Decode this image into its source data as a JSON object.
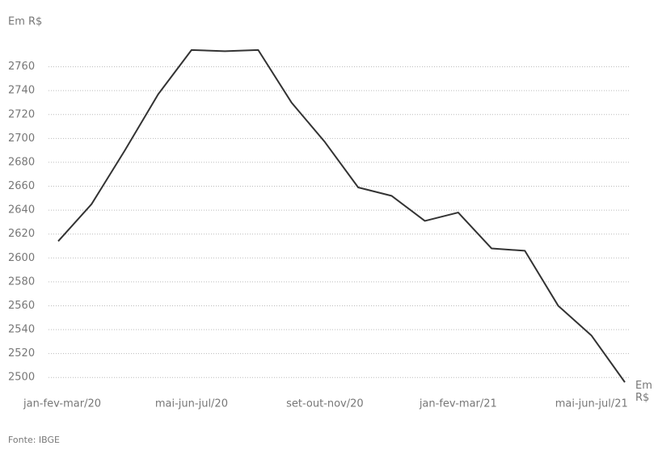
{
  "chart_data": {
    "type": "line",
    "y_label": "Em R$",
    "x_label": "Em R$",
    "source": "Fonte: IBGE",
    "categories": [
      "jan-fev-mar/20",
      null,
      null,
      null,
      "mai-jun-jul/20",
      null,
      null,
      null,
      "set-out-nov/20",
      null,
      null,
      null,
      "jan-fev-mar/21",
      null,
      null,
      null,
      "mai-jun-jul/21",
      null
    ],
    "series": [
      {
        "name": null,
        "color": "#333333",
        "values": [
          2614,
          2645,
          2690,
          2737,
          2774,
          2773,
          2774,
          2730,
          2697,
          2659,
          2652,
          2631,
          2638,
          2608,
          2606,
          2560,
          2535,
          2496
        ]
      }
    ],
    "ylim": [
      2490,
      2780
    ],
    "yticks": [
      2500,
      2520,
      2540,
      2560,
      2580,
      2600,
      2620,
      2640,
      2660,
      2680,
      2700,
      2720,
      2740,
      2760
    ],
    "grid": true
  }
}
